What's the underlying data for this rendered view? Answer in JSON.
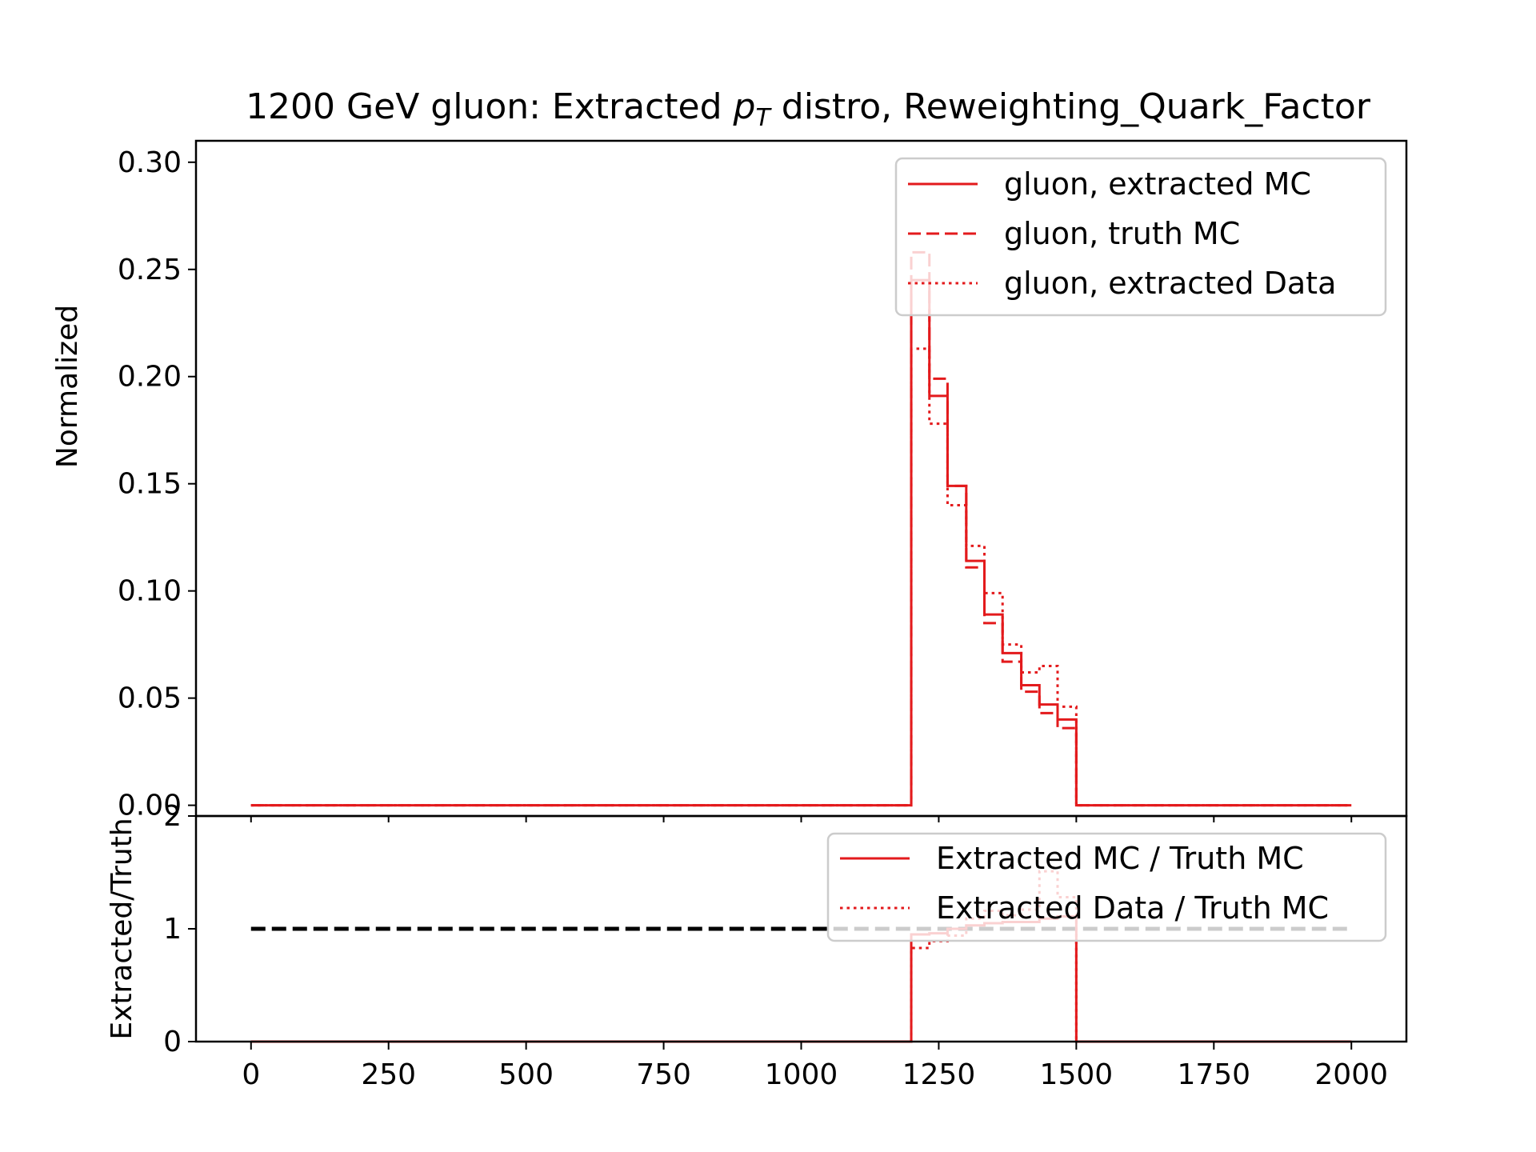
{
  "chart_data": [
    {
      "type": "line",
      "title": "1200 GeV gluon: Extracted p_T distro, Reweighting_Quark_Factor",
      "title_parts": {
        "before": "1200 GeV gluon: Extracted ",
        "var": "p",
        "sub": "T",
        "after": " distro, Reweighting_Quark_Factor"
      },
      "xlabel": "",
      "ylabel": "Normalized",
      "xlim": [
        -100,
        2100
      ],
      "ylim": [
        -0.005,
        0.31
      ],
      "xticks": [
        0,
        250,
        500,
        750,
        1000,
        1250,
        1500,
        1750,
        2000
      ],
      "xtick_labels": [
        "0",
        "250",
        "500",
        "750",
        "1000",
        "1250",
        "1500",
        "1750",
        "2000"
      ],
      "yticks": [
        0.0,
        0.05,
        0.1,
        0.15,
        0.2,
        0.25,
        0.3
      ],
      "ytick_labels": [
        "0.00",
        "0.05",
        "0.10",
        "0.15",
        "0.20",
        "0.25",
        "0.30"
      ],
      "grid": false,
      "legend_position": "top-right",
      "bin_edges": [
        0,
        1200,
        1233,
        1266,
        1300,
        1333,
        1366,
        1400,
        1433,
        1466,
        1500,
        2000
      ],
      "series": [
        {
          "name": "gluon, extracted MC",
          "style": "solid",
          "color": "#e31a1c",
          "values": [
            0.0,
            0.245,
            0.191,
            0.149,
            0.114,
            0.089,
            0.071,
            0.056,
            0.047,
            0.04,
            0.0
          ]
        },
        {
          "name": "gluon, truth MC",
          "style": "dashed",
          "color": "#e31a1c",
          "values": [
            0.0,
            0.258,
            0.199,
            0.149,
            0.111,
            0.085,
            0.067,
            0.053,
            0.043,
            0.036,
            0.0
          ]
        },
        {
          "name": "gluon, extracted Data",
          "style": "dotted",
          "color": "#e31a1c",
          "values": [
            0.0,
            0.213,
            0.178,
            0.14,
            0.121,
            0.099,
            0.075,
            0.062,
            0.065,
            0.046,
            0.0
          ]
        }
      ]
    },
    {
      "type": "line",
      "title": "",
      "xlabel": "",
      "ylabel": "Extracted/Truth",
      "xlim": [
        -100,
        2100
      ],
      "ylim": [
        0,
        2
      ],
      "xticks": [
        0,
        250,
        500,
        750,
        1000,
        1250,
        1500,
        1750,
        2000
      ],
      "xtick_labels": [
        "0",
        "250",
        "500",
        "750",
        "1000",
        "1250",
        "1500",
        "1750",
        "2000"
      ],
      "yticks": [
        0,
        1,
        2
      ],
      "ytick_labels": [
        "0",
        "1",
        "2"
      ],
      "grid": false,
      "legend_position": "top-right",
      "reference_line": {
        "y": 1,
        "x_range": [
          0,
          2000
        ],
        "style": "dashed",
        "color": "#000000"
      },
      "bin_edges": [
        0,
        1200,
        1233,
        1266,
        1300,
        1333,
        1366,
        1400,
        1433,
        1466,
        1500,
        2000
      ],
      "series": [
        {
          "name": "Extracted MC / Truth MC",
          "style": "solid",
          "color": "#e31a1c",
          "values": [
            0.0,
            0.95,
            0.96,
            1.0,
            1.03,
            1.05,
            1.06,
            1.06,
            1.09,
            1.11,
            0.0
          ]
        },
        {
          "name": "Extracted Data / Truth MC",
          "style": "dotted",
          "color": "#e31a1c",
          "values": [
            0.0,
            0.83,
            0.89,
            0.94,
            1.09,
            1.16,
            1.12,
            1.17,
            1.51,
            1.28,
            0.0
          ]
        }
      ]
    }
  ]
}
